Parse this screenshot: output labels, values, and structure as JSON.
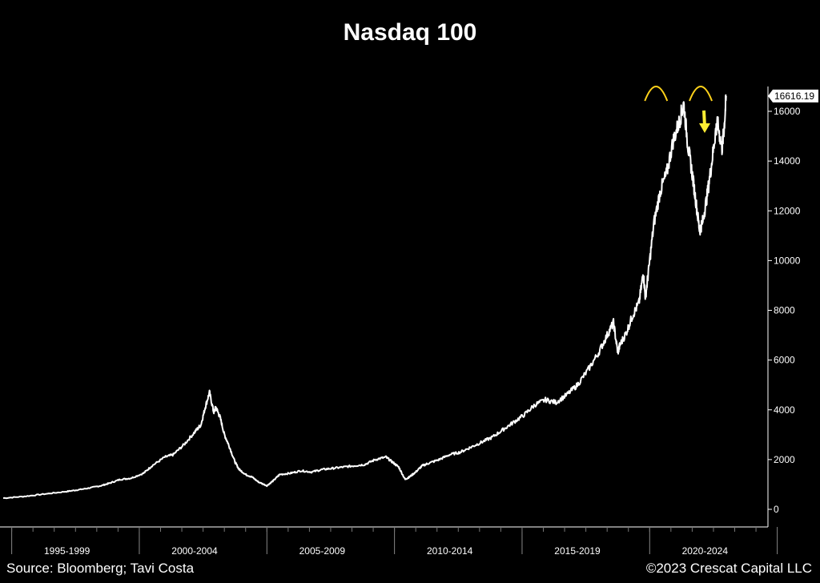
{
  "chart_data": {
    "type": "line",
    "title": "Nasdaq 100",
    "xlabel": "",
    "ylabel": "",
    "x_range": [
      1990.0,
      2026.0
    ],
    "ylim": [
      0,
      16900
    ],
    "y_ticks": [
      0,
      2000,
      4000,
      6000,
      8000,
      10000,
      12000,
      14000,
      16000
    ],
    "x_tick_labels": [
      "1995-1999",
      "2000-2004",
      "2005-2009",
      "2010-2014",
      "2015-2019",
      "2020-2024"
    ],
    "x_tick_centers": [
      1993.0,
      1999.0,
      2005.0,
      2011.0,
      2017.0,
      2023.0
    ],
    "x_divisions": [
      1990.4,
      1996.4,
      2002.4,
      2008.4,
      2014.4,
      2020.4,
      2026.4
    ],
    "last_value_label": "16616.19",
    "series": [
      {
        "name": "Nasdaq 100",
        "color": "#ffffff",
        "x": [
          1990.0,
          1991.0,
          1992.0,
          1993.0,
          1993.5,
          1994.0,
          1994.6,
          1995.0,
          1995.5,
          1996.0,
          1996.6,
          1997.0,
          1997.6,
          1998.0,
          1998.5,
          1999.0,
          1999.3,
          1999.5,
          1999.7,
          1999.9,
          2000.0,
          2000.2,
          2000.4,
          2000.6,
          2000.9,
          2001.1,
          2001.4,
          2001.7,
          2002.0,
          2002.4,
          2002.7,
          2003.0,
          2003.5,
          2004.0,
          2004.5,
          2005.0,
          2005.5,
          2006.0,
          2006.5,
          2007.0,
          2007.5,
          2008.0,
          2008.3,
          2008.6,
          2008.9,
          2009.1,
          2009.4,
          2009.7,
          2010.0,
          2010.5,
          2011.0,
          2011.5,
          2012.0,
          2012.5,
          2013.0,
          2013.5,
          2014.0,
          2014.5,
          2015.0,
          2015.5,
          2016.0,
          2016.5,
          2017.0,
          2017.5,
          2018.0,
          2018.4,
          2018.7,
          2018.9,
          2019.0,
          2019.3,
          2019.6,
          2019.9,
          2020.1,
          2020.2,
          2020.35,
          2020.6,
          2020.9,
          2021.2,
          2021.5,
          2021.8,
          2022.0,
          2022.2,
          2022.4,
          2022.6,
          2022.75,
          2022.9,
          2023.1,
          2023.3,
          2023.5,
          2023.6,
          2023.8,
          2023.9,
          2024.0
        ],
        "values": [
          450,
          520,
          620,
          720,
          780,
          850,
          950,
          1050,
          1200,
          1250,
          1450,
          1750,
          2100,
          2200,
          2600,
          3100,
          3400,
          4100,
          4700,
          3900,
          4100,
          3700,
          3000,
          2600,
          1900,
          1600,
          1400,
          1300,
          1100,
          950,
          1150,
          1400,
          1450,
          1550,
          1500,
          1600,
          1650,
          1700,
          1750,
          1800,
          2000,
          2100,
          1900,
          1700,
          1200,
          1300,
          1500,
          1750,
          1850,
          2000,
          2200,
          2300,
          2500,
          2700,
          2900,
          3200,
          3500,
          3800,
          4200,
          4400,
          4300,
          4600,
          5000,
          5600,
          6300,
          7000,
          7500,
          6300,
          6600,
          7100,
          7800,
          8300,
          9500,
          8500,
          9600,
          11500,
          12800,
          13500,
          14800,
          15600,
          16300,
          14600,
          13500,
          12200,
          11200,
          11600,
          12600,
          13800,
          15200,
          15500,
          14500,
          15300,
          16616.19
        ]
      }
    ]
  },
  "annotations": {
    "peak_markers": [
      2020.7,
      2022.8
    ],
    "arrow_color": "#ffee33",
    "marker_color": "#ffd21a"
  },
  "footer": {
    "source": "Source: Bloomberg; Tavi Costa",
    "credit": "©2023 Crescat Capital LLC"
  }
}
